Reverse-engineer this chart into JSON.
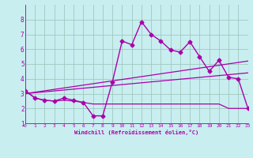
{
  "xlabel": "Windchill (Refroidissement éolien,°C)",
  "xlim": [
    0,
    23
  ],
  "ylim": [
    1,
    9
  ],
  "xticks": [
    0,
    1,
    2,
    3,
    4,
    5,
    6,
    7,
    8,
    9,
    10,
    11,
    12,
    13,
    14,
    15,
    16,
    17,
    18,
    19,
    20,
    21,
    22,
    23
  ],
  "yticks": [
    1,
    2,
    3,
    4,
    5,
    6,
    7,
    8
  ],
  "background_color": "#c8eef0",
  "grid_color": "#a0c8c0",
  "line_color": "#aa00aa",
  "lines": [
    {
      "x": [
        0,
        1,
        2,
        3,
        4,
        5,
        6,
        7,
        8,
        9,
        10,
        11,
        12,
        13,
        14,
        15,
        16,
        17,
        18,
        19,
        20,
        21,
        22,
        23
      ],
      "y": [
        3.2,
        2.7,
        2.55,
        2.5,
        2.7,
        2.55,
        2.4,
        1.5,
        1.5,
        3.8,
        6.55,
        6.3,
        7.85,
        7.0,
        6.55,
        5.95,
        5.8,
        6.5,
        5.5,
        4.5,
        5.25,
        4.1,
        4.0,
        2.0
      ],
      "marker": "D",
      "marker_size": 2.5,
      "linewidth": 1.0
    },
    {
      "x": [
        0,
        1,
        2,
        3,
        4,
        5,
        6,
        7,
        8,
        9,
        10,
        11,
        12,
        13,
        14,
        15,
        16,
        17,
        18,
        19,
        20,
        21,
        22,
        23
      ],
      "y": [
        3.2,
        2.7,
        2.55,
        2.5,
        2.55,
        2.5,
        2.4,
        2.3,
        2.3,
        2.3,
        2.3,
        2.3,
        2.3,
        2.3,
        2.3,
        2.3,
        2.3,
        2.3,
        2.3,
        2.3,
        2.3,
        2.0,
        2.0,
        2.0
      ],
      "marker": null,
      "marker_size": 0,
      "linewidth": 0.9
    },
    {
      "x": [
        0,
        23
      ],
      "y": [
        3.0,
        4.4
      ],
      "marker": null,
      "marker_size": 0,
      "linewidth": 0.9
    },
    {
      "x": [
        0,
        23
      ],
      "y": [
        3.0,
        5.2
      ],
      "marker": null,
      "marker_size": 0,
      "linewidth": 0.9
    }
  ]
}
